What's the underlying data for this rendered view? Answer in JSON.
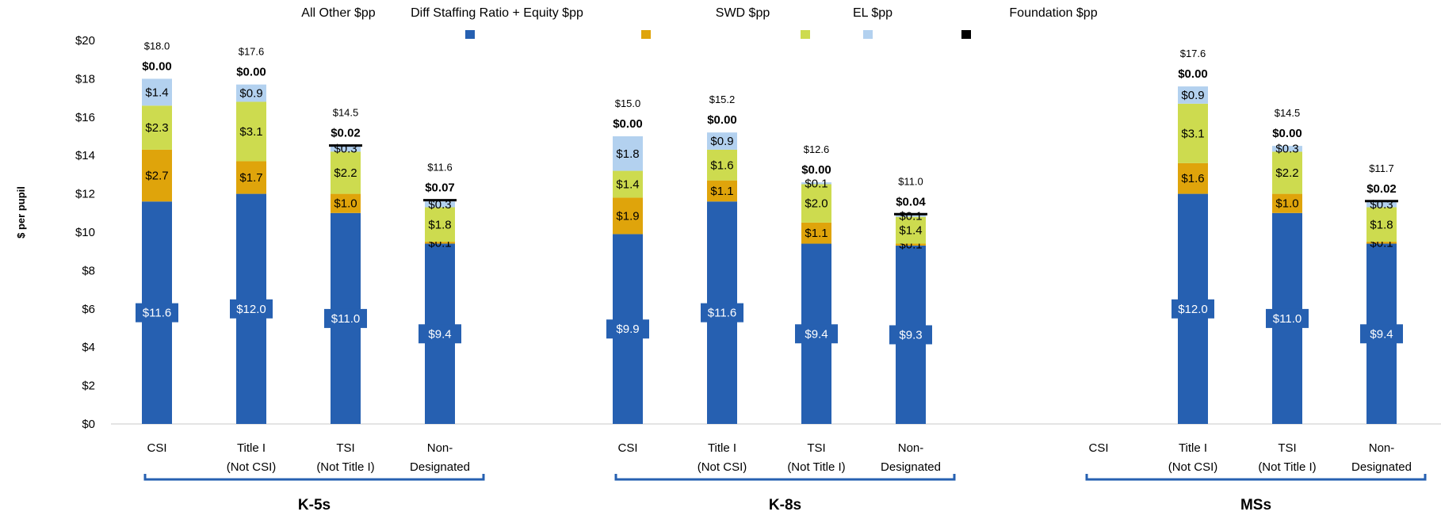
{
  "chart_data": {
    "type": "bar",
    "stacked": true,
    "ylabel": "$ per pupil",
    "ylim": [
      0,
      20
    ],
    "y_ticks": [
      "$0",
      "$2",
      "$4",
      "$6",
      "$8",
      "$10",
      "$12",
      "$14",
      "$16",
      "$18",
      "$20"
    ],
    "legend": [
      {
        "name": "All Other $pp",
        "color": "#2660b1"
      },
      {
        "name": "Diff Staffing Ratio + Equity $pp",
        "color": "#dfa40b"
      },
      {
        "name": "SWD $pp",
        "color": "#cddb4f"
      },
      {
        "name": "EL $pp",
        "color": "#b3d1ef"
      },
      {
        "name": "Foundation $pp",
        "color": "#000000"
      }
    ],
    "groups": [
      {
        "name": "K-5s",
        "categories": [
          {
            "label_lines": [
              "CSI"
            ],
            "total": 18.0,
            "total_label": "$18.0",
            "foundation_label": "$0.00",
            "segments": [
              {
                "value": 11.6,
                "label": "$11.6"
              },
              {
                "value": 2.7,
                "label": "$2.7"
              },
              {
                "value": 2.3,
                "label": "$2.3"
              },
              {
                "value": 1.4,
                "label": "$1.4"
              },
              {
                "value": 0.0,
                "label": ""
              }
            ]
          },
          {
            "label_lines": [
              "Title I",
              "(Not CSI)"
            ],
            "total": 17.6,
            "total_label": "$17.6",
            "foundation_label": "$0.00",
            "segments": [
              {
                "value": 12.0,
                "label": "$12.0"
              },
              {
                "value": 1.7,
                "label": "$1.7"
              },
              {
                "value": 3.1,
                "label": "$3.1"
              },
              {
                "value": 0.9,
                "label": "$0.9"
              },
              {
                "value": 0.0,
                "label": ""
              }
            ]
          },
          {
            "label_lines": [
              "TSI",
              "(Not Title I)"
            ],
            "total": 14.5,
            "total_label": "$14.5",
            "foundation_label": "$0.02",
            "segments": [
              {
                "value": 11.0,
                "label": "$11.0"
              },
              {
                "value": 1.0,
                "label": "$1.0"
              },
              {
                "value": 2.2,
                "label": "$2.2"
              },
              {
                "value": 0.3,
                "label": "$0.3"
              },
              {
                "value": 0.02,
                "label": ""
              }
            ]
          },
          {
            "label_lines": [
              "Non-",
              "Designated"
            ],
            "total": 11.6,
            "total_label": "$11.6",
            "foundation_label": "$0.07",
            "segments": [
              {
                "value": 9.4,
                "label": "$9.4"
              },
              {
                "value": 0.1,
                "label": "$0.1"
              },
              {
                "value": 1.8,
                "label": "$1.8"
              },
              {
                "value": 0.3,
                "label": "$0.3"
              },
              {
                "value": 0.07,
                "label": ""
              }
            ]
          }
        ]
      },
      {
        "name": "K-8s",
        "categories": [
          {
            "label_lines": [
              "CSI"
            ],
            "total": 15.0,
            "total_label": "$15.0",
            "foundation_label": "$0.00",
            "segments": [
              {
                "value": 9.9,
                "label": "$9.9"
              },
              {
                "value": 1.9,
                "label": "$1.9"
              },
              {
                "value": 1.4,
                "label": "$1.4"
              },
              {
                "value": 1.8,
                "label": "$1.8"
              },
              {
                "value": 0.0,
                "label": ""
              }
            ]
          },
          {
            "label_lines": [
              "Title I",
              "(Not CSI)"
            ],
            "total": 15.2,
            "total_label": "$15.2",
            "foundation_label": "$0.00",
            "segments": [
              {
                "value": 11.6,
                "label": "$11.6"
              },
              {
                "value": 1.1,
                "label": "$1.1"
              },
              {
                "value": 1.6,
                "label": "$1.6"
              },
              {
                "value": 0.9,
                "label": "$0.9"
              },
              {
                "value": 0.0,
                "label": ""
              }
            ]
          },
          {
            "label_lines": [
              "TSI",
              "(Not Title I)"
            ],
            "total": 12.6,
            "total_label": "$12.6",
            "foundation_label": "$0.00",
            "segments": [
              {
                "value": 9.4,
                "label": "$9.4"
              },
              {
                "value": 1.1,
                "label": "$1.1"
              },
              {
                "value": 2.0,
                "label": "$2.0"
              },
              {
                "value": 0.1,
                "label": "$0.1"
              },
              {
                "value": 0.0,
                "label": ""
              }
            ]
          },
          {
            "label_lines": [
              "Non-",
              "Designated"
            ],
            "total": 11.0,
            "total_label": "$11.0",
            "foundation_label": "$0.04",
            "segments": [
              {
                "value": 9.3,
                "label": "$9.3"
              },
              {
                "value": 0.1,
                "label": "$0.1"
              },
              {
                "value": 1.4,
                "label": "$1.4"
              },
              {
                "value": 0.1,
                "label": "$0.1"
              },
              {
                "value": 0.04,
                "label": ""
              }
            ]
          }
        ]
      },
      {
        "name": "MSs",
        "categories": [
          {
            "label_lines": [
              "CSI"
            ],
            "total": null,
            "total_label": "",
            "foundation_label": "",
            "segments": []
          },
          {
            "label_lines": [
              "Title I",
              "(Not CSI)"
            ],
            "total": 17.6,
            "total_label": "$17.6",
            "foundation_label": "$0.00",
            "segments": [
              {
                "value": 12.0,
                "label": "$12.0"
              },
              {
                "value": 1.6,
                "label": "$1.6"
              },
              {
                "value": 3.1,
                "label": "$3.1"
              },
              {
                "value": 0.9,
                "label": "$0.9"
              },
              {
                "value": 0.0,
                "label": ""
              }
            ]
          },
          {
            "label_lines": [
              "TSI",
              "(Not Title I)"
            ],
            "total": 14.5,
            "total_label": "$14.5",
            "foundation_label": "$0.00",
            "segments": [
              {
                "value": 11.0,
                "label": "$11.0"
              },
              {
                "value": 1.0,
                "label": "$1.0"
              },
              {
                "value": 2.2,
                "label": "$2.2"
              },
              {
                "value": 0.3,
                "label": "$0.3"
              },
              {
                "value": 0.0,
                "label": ""
              }
            ]
          },
          {
            "label_lines": [
              "Non-",
              "Designated"
            ],
            "total": 11.7,
            "total_label": "$11.7",
            "foundation_label": "$0.02",
            "segments": [
              {
                "value": 9.4,
                "label": "$9.4"
              },
              {
                "value": 0.1,
                "label": "$0.1"
              },
              {
                "value": 1.8,
                "label": "$1.8"
              },
              {
                "value": 0.3,
                "label": "$0.3"
              },
              {
                "value": 0.02,
                "label": ""
              }
            ]
          }
        ]
      }
    ]
  }
}
